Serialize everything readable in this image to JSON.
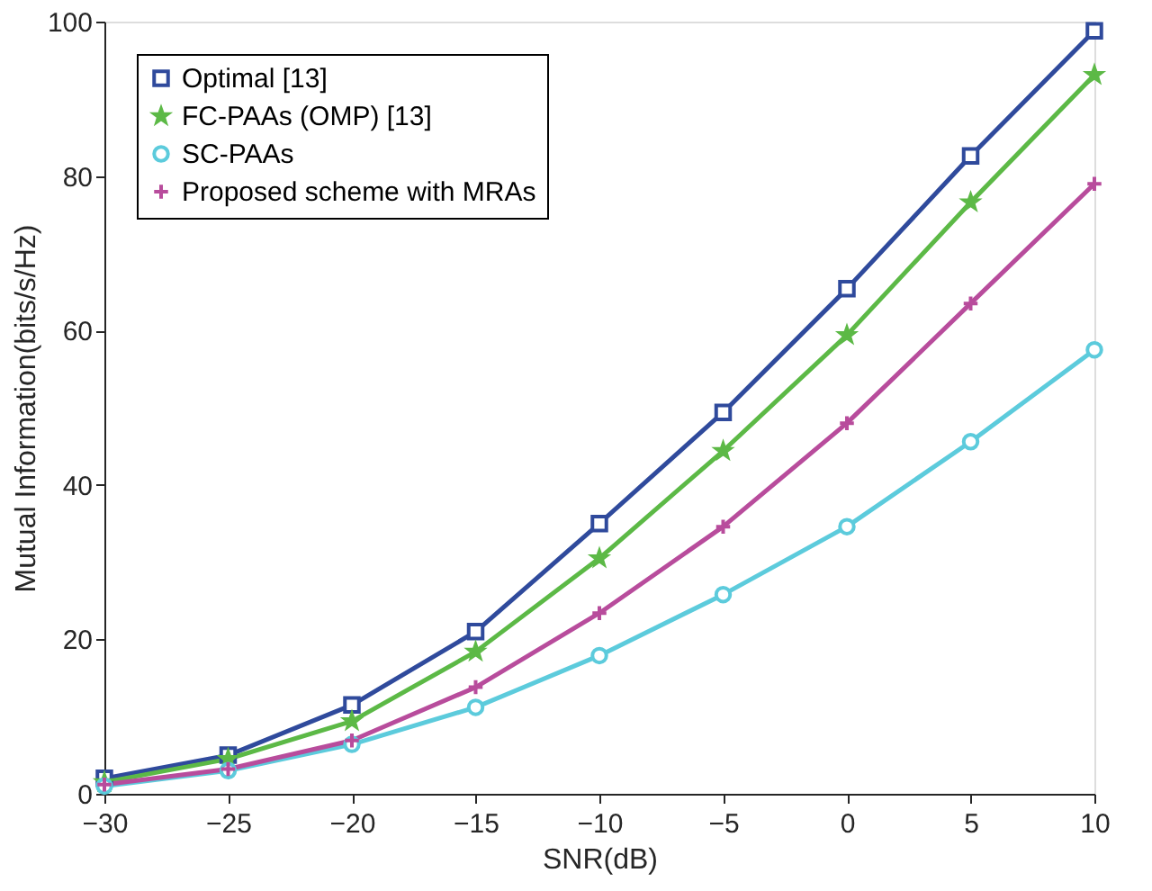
{
  "chart_data": {
    "type": "line",
    "xlabel": "SNR(dB)",
    "ylabel": "Mutual Information(bits/s/Hz)",
    "x": [
      -30,
      -25,
      -20,
      -15,
      -10,
      -5,
      0,
      5,
      10
    ],
    "xlim": [
      -30,
      10
    ],
    "xticks": [
      -30,
      -25,
      -20,
      -15,
      -10,
      -5,
      0,
      5,
      10
    ],
    "ylim": [
      0,
      100
    ],
    "yticks": [
      0,
      20,
      40,
      60,
      80,
      100
    ],
    "grid": false,
    "legend": "top left",
    "line_style": "solid",
    "series": [
      {
        "name": "Optimal [13]",
        "color": "#2f4a9c",
        "marker": "square",
        "values": [
          2,
          5,
          11.5,
          21,
          35,
          49.4,
          65.4,
          82.6,
          98.8
        ]
      },
      {
        "name": "FC-PAAs (OMP) [13]",
        "color": "#5cb946",
        "marker": "star",
        "values": [
          1.5,
          4.5,
          9.4,
          18.4,
          30.5,
          44.4,
          59.4,
          76.6,
          93.1
        ]
      },
      {
        "name": "SC-PAAs",
        "color": "#5ccbdc",
        "marker": "circle",
        "values": [
          1,
          3,
          6.4,
          11.2,
          17.9,
          25.8,
          34.6,
          45.6,
          57.5
        ]
      },
      {
        "name": "Proposed scheme with MRAs",
        "color": "#b84c9c",
        "marker": "cross",
        "values": [
          1.2,
          3.2,
          6.9,
          13.8,
          23.4,
          34.6,
          48,
          63.5,
          79
        ]
      }
    ]
  }
}
